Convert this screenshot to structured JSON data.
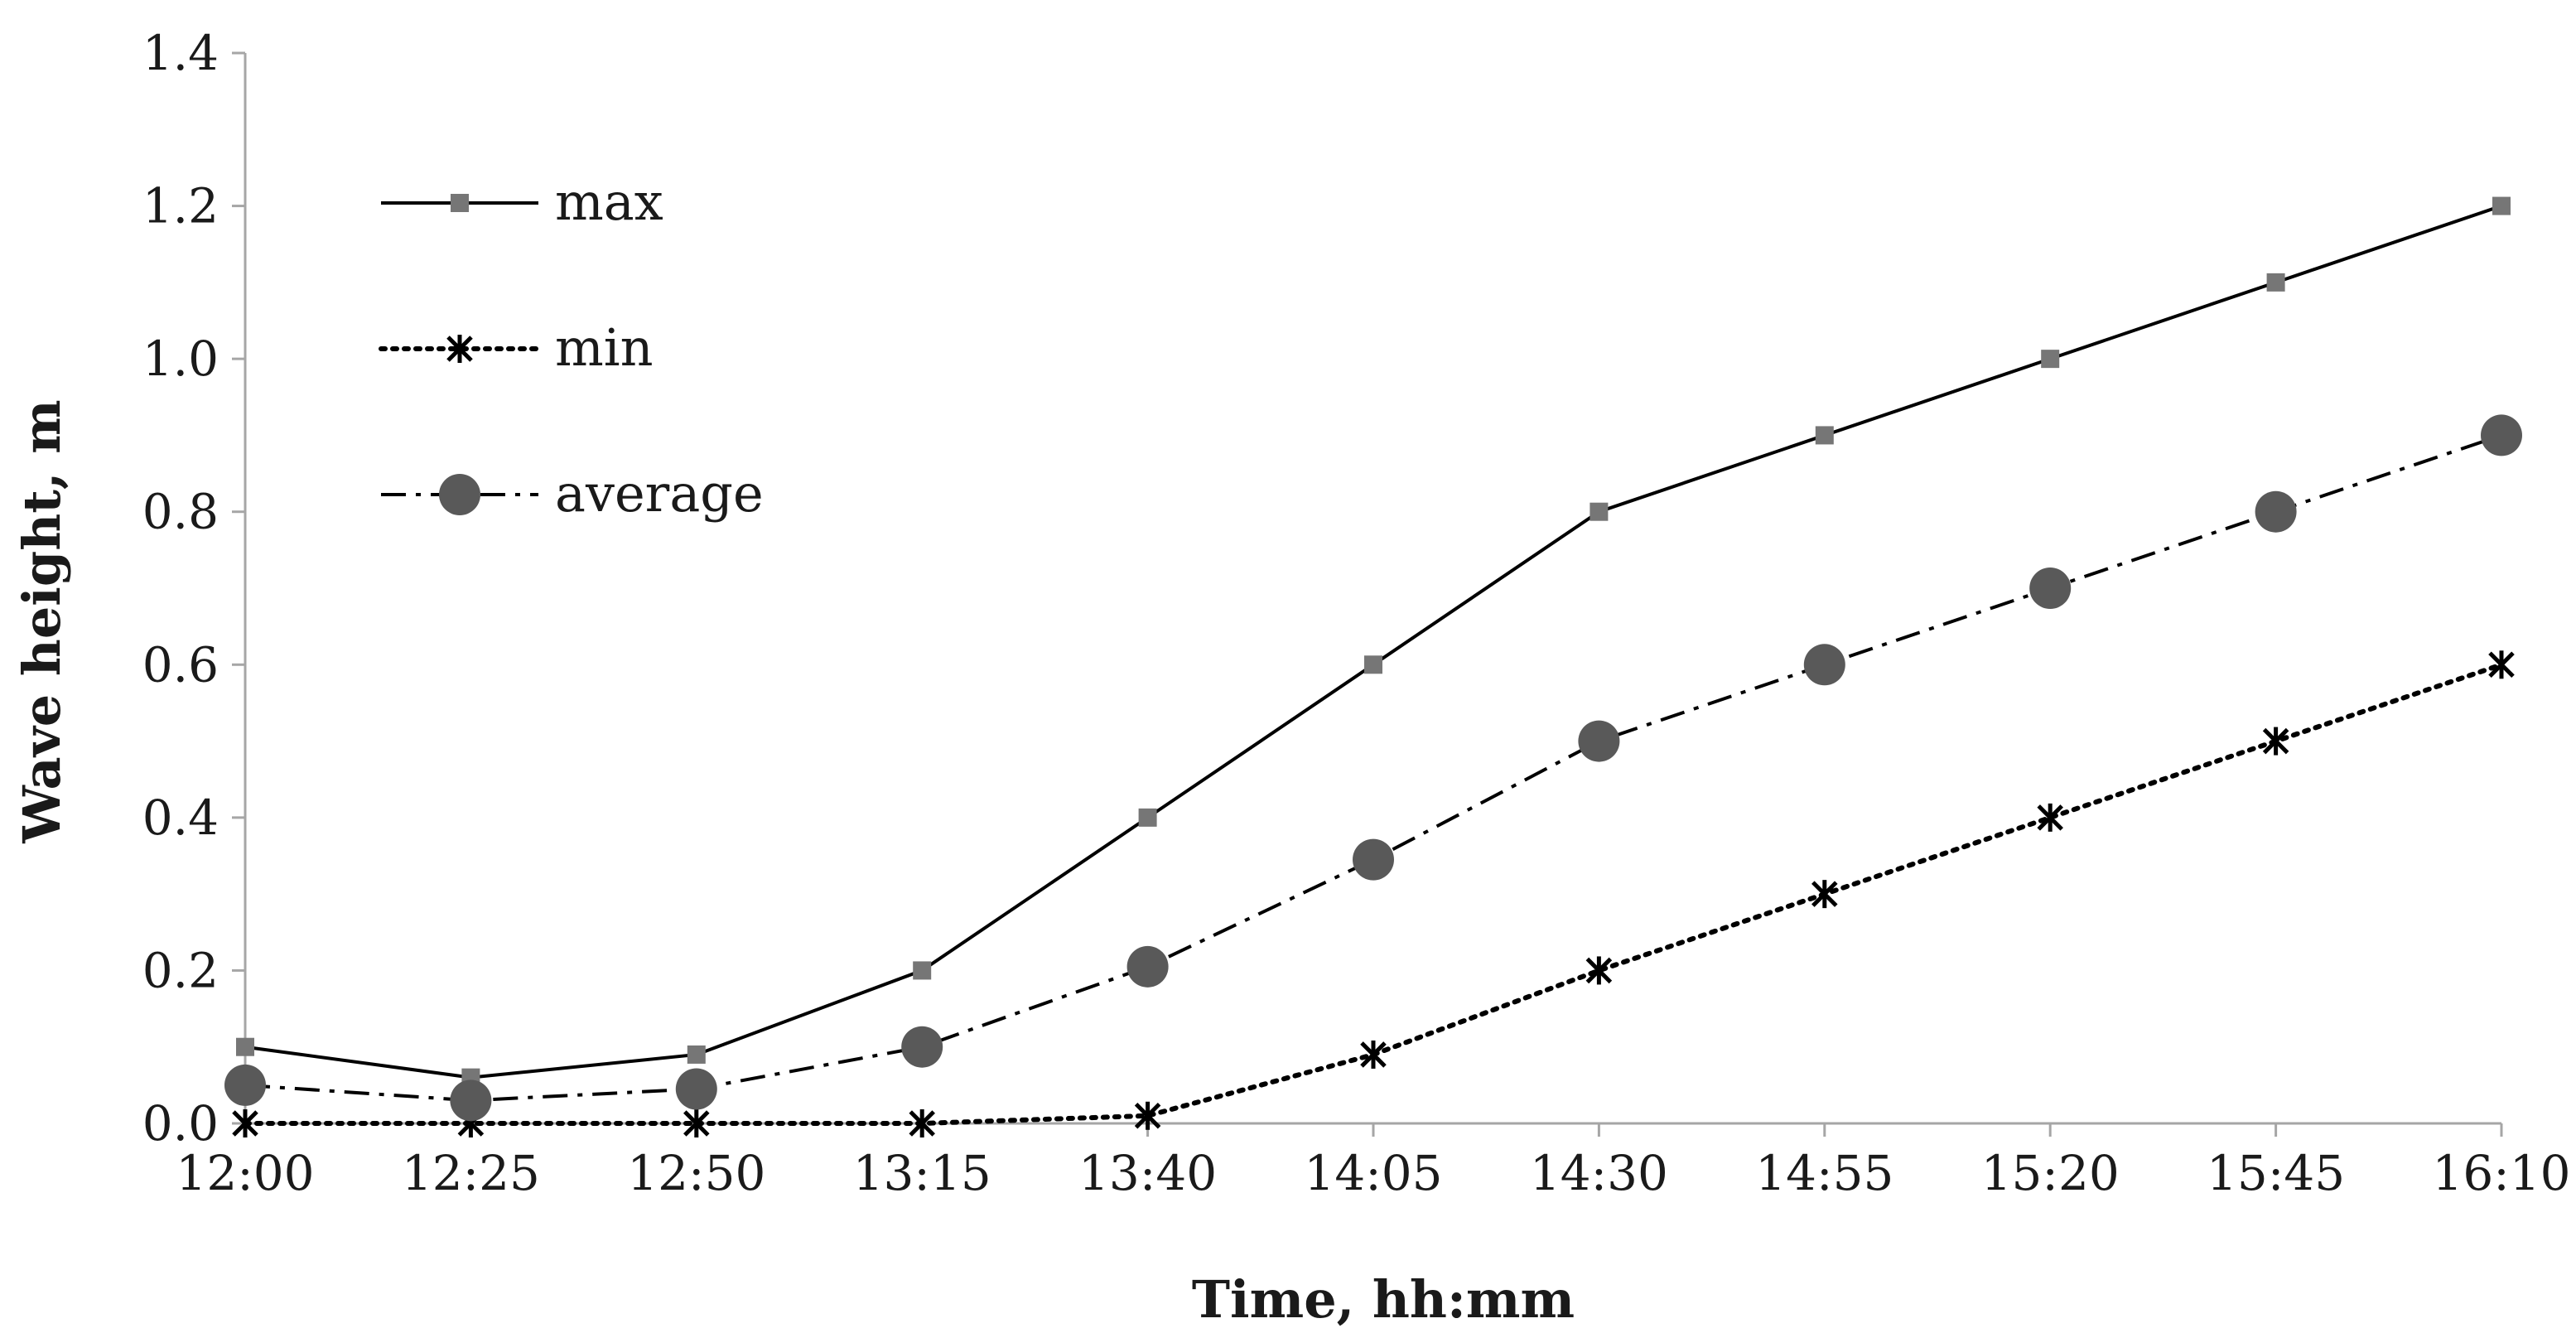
{
  "chart_data": {
    "type": "line",
    "title": "",
    "xlabel": "Time, hh:mm",
    "ylabel": "Wave height, m",
    "categories": [
      "12:00",
      "12:25",
      "12:50",
      "13:15",
      "13:40",
      "14:05",
      "14:30",
      "14:55",
      "15:20",
      "15:45",
      "16:10"
    ],
    "ylim": [
      0,
      1.4
    ],
    "yticks": [
      "0.0",
      "0.2",
      "0.4",
      "0.6",
      "0.8",
      "1.0",
      "1.2",
      "1.4"
    ],
    "grid": false,
    "legend_position": "top-left",
    "series": [
      {
        "name": "max",
        "line_style": "solid",
        "marker": "square",
        "color": "#000000",
        "marker_color": "#767676",
        "values": [
          0.1,
          0.06,
          0.09,
          0.2,
          0.4,
          0.6,
          0.8,
          0.9,
          1.0,
          1.1,
          1.2
        ]
      },
      {
        "name": "min",
        "line_style": "dotted",
        "marker": "asterisk",
        "color": "#000000",
        "marker_color": "#000000",
        "values": [
          0.0,
          0.0,
          0.0,
          0.0,
          0.01,
          0.09,
          0.2,
          0.3,
          0.4,
          0.5,
          0.6
        ]
      },
      {
        "name": "average",
        "line_style": "dash-dot",
        "marker": "circle",
        "color": "#000000",
        "marker_color": "#595959",
        "values": [
          0.05,
          0.03,
          0.045,
          0.1,
          0.205,
          0.345,
          0.5,
          0.6,
          0.7,
          0.8,
          0.9
        ]
      }
    ]
  }
}
